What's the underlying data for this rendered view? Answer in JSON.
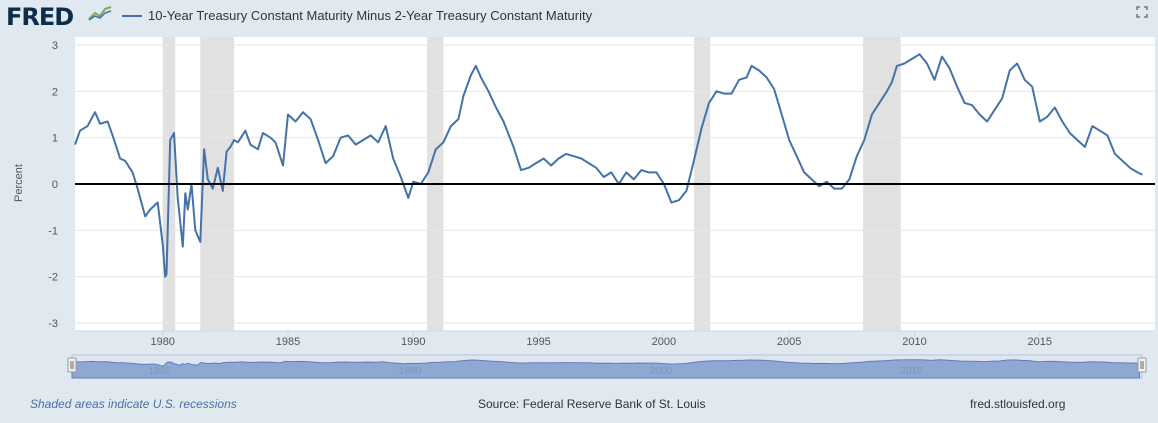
{
  "header": {
    "logo_text": "FRED",
    "logo_icon": "fred-graph-icon",
    "fullscreen_icon": "fullscreen-icon"
  },
  "footer": {
    "recession_note": "Shaded areas indicate U.S. recessions",
    "source": "Source: Federal Reserve Bank of St. Louis",
    "site": "fred.stlouisfed.org"
  },
  "colors": {
    "line": "#4572a7",
    "recession": "#e1e1e1",
    "navigator_fill": "#8fa8d3"
  },
  "chart_data": {
    "type": "line",
    "title": "",
    "xlabel": "",
    "ylabel": "Percent",
    "ylim": [
      -3,
      3
    ],
    "xlim": [
      1976.5,
      2019.2
    ],
    "yticks": [
      "-3",
      "-2",
      "-1",
      "0",
      "1",
      "2",
      "3"
    ],
    "xticks": [
      "1980",
      "1985",
      "1990",
      "1995",
      "2000",
      "2005",
      "2010",
      "2015"
    ],
    "navigator_labels": [
      "1980",
      "1990",
      "2000",
      "2010"
    ],
    "grid": true,
    "legend_position": "top-left",
    "recessions": [
      [
        1980.0,
        1980.5
      ],
      [
        1981.5,
        1982.85
      ],
      [
        1990.55,
        1991.2
      ],
      [
        2001.2,
        2001.85
      ],
      [
        2007.95,
        2009.45
      ]
    ],
    "series": [
      {
        "name": "10-Year Treasury Constant Maturity Minus 2-Year Treasury Constant Maturity",
        "x": [
          1976.5,
          1976.7,
          1977.0,
          1977.3,
          1977.5,
          1977.8,
          1978.0,
          1978.3,
          1978.5,
          1978.8,
          1979.0,
          1979.3,
          1979.5,
          1979.8,
          1980.0,
          1980.1,
          1980.15,
          1980.3,
          1980.45,
          1980.6,
          1980.8,
          1980.9,
          1981.0,
          1981.15,
          1981.3,
          1981.5,
          1981.65,
          1981.8,
          1982.0,
          1982.2,
          1982.4,
          1982.55,
          1982.7,
          1982.85,
          1983.0,
          1983.3,
          1983.5,
          1983.8,
          1984.0,
          1984.3,
          1984.5,
          1984.8,
          1985.0,
          1985.3,
          1985.6,
          1985.9,
          1986.2,
          1986.5,
          1986.8,
          1987.1,
          1987.4,
          1987.7,
          1988.0,
          1988.3,
          1988.6,
          1988.9,
          1989.2,
          1989.5,
          1989.8,
          1990.0,
          1990.3,
          1990.6,
          1990.9,
          1991.2,
          1991.5,
          1991.8,
          1992.0,
          1992.3,
          1992.5,
          1992.7,
          1993.0,
          1993.3,
          1993.6,
          1994.0,
          1994.3,
          1994.6,
          1994.9,
          1995.2,
          1995.5,
          1995.8,
          1996.1,
          1996.4,
          1996.7,
          1997.0,
          1997.3,
          1997.6,
          1997.9,
          1998.2,
          1998.5,
          1998.8,
          1999.1,
          1999.4,
          1999.7,
          2000.0,
          2000.3,
          2000.6,
          2000.9,
          2001.2,
          2001.5,
          2001.8,
          2002.1,
          2002.4,
          2002.7,
          2003.0,
          2003.3,
          2003.5,
          2003.8,
          2004.1,
          2004.4,
          2004.7,
          2005.0,
          2005.3,
          2005.6,
          2005.9,
          2006.2,
          2006.5,
          2006.8,
          2007.1,
          2007.4,
          2007.7,
          2008.0,
          2008.3,
          2008.6,
          2008.9,
          2009.1,
          2009.3,
          2009.6,
          2009.9,
          2010.2,
          2010.5,
          2010.8,
          2011.1,
          2011.4,
          2011.7,
          2012.0,
          2012.3,
          2012.6,
          2012.9,
          2013.2,
          2013.5,
          2013.8,
          2014.1,
          2014.4,
          2014.7,
          2015.0,
          2015.3,
          2015.6,
          2015.9,
          2016.2,
          2016.5,
          2016.8,
          2017.1,
          2017.4,
          2017.7,
          2018.0,
          2018.3,
          2018.6,
          2018.9,
          2019.1
        ],
        "values": [
          0.85,
          1.15,
          1.25,
          1.55,
          1.3,
          1.35,
          1.05,
          0.55,
          0.5,
          0.25,
          -0.1,
          -0.7,
          -0.55,
          -0.4,
          -1.3,
          -2.0,
          -1.95,
          0.95,
          1.1,
          -0.3,
          -1.35,
          -0.2,
          -0.55,
          0.0,
          -1.0,
          -1.25,
          0.75,
          0.1,
          -0.1,
          0.35,
          -0.15,
          0.7,
          0.8,
          0.95,
          0.9,
          1.15,
          0.85,
          0.75,
          1.1,
          1.0,
          0.9,
          0.4,
          1.5,
          1.35,
          1.55,
          1.4,
          0.95,
          0.45,
          0.6,
          1.0,
          1.05,
          0.85,
          0.95,
          1.05,
          0.9,
          1.25,
          0.55,
          0.15,
          -0.3,
          0.05,
          0.0,
          0.25,
          0.75,
          0.9,
          1.25,
          1.4,
          1.9,
          2.35,
          2.55,
          2.3,
          2.0,
          1.65,
          1.35,
          0.8,
          0.3,
          0.35,
          0.45,
          0.55,
          0.4,
          0.55,
          0.65,
          0.6,
          0.55,
          0.45,
          0.35,
          0.15,
          0.25,
          0.0,
          0.25,
          0.1,
          0.3,
          0.25,
          0.25,
          0.0,
          -0.4,
          -0.35,
          -0.15,
          0.5,
          1.2,
          1.75,
          2.0,
          1.95,
          1.95,
          2.25,
          2.3,
          2.55,
          2.45,
          2.3,
          2.05,
          1.5,
          0.95,
          0.6,
          0.25,
          0.1,
          -0.05,
          0.05,
          -0.1,
          -0.1,
          0.1,
          0.6,
          0.95,
          1.5,
          1.75,
          2.0,
          2.2,
          2.55,
          2.6,
          2.7,
          2.8,
          2.6,
          2.25,
          2.75,
          2.5,
          2.1,
          1.75,
          1.7,
          1.5,
          1.35,
          1.6,
          1.85,
          2.45,
          2.6,
          2.25,
          2.1,
          1.35,
          1.45,
          1.65,
          1.35,
          1.1,
          0.95,
          0.8,
          1.25,
          1.15,
          1.05,
          0.65,
          0.5,
          0.35,
          0.25,
          0.2
        ]
      }
    ]
  }
}
